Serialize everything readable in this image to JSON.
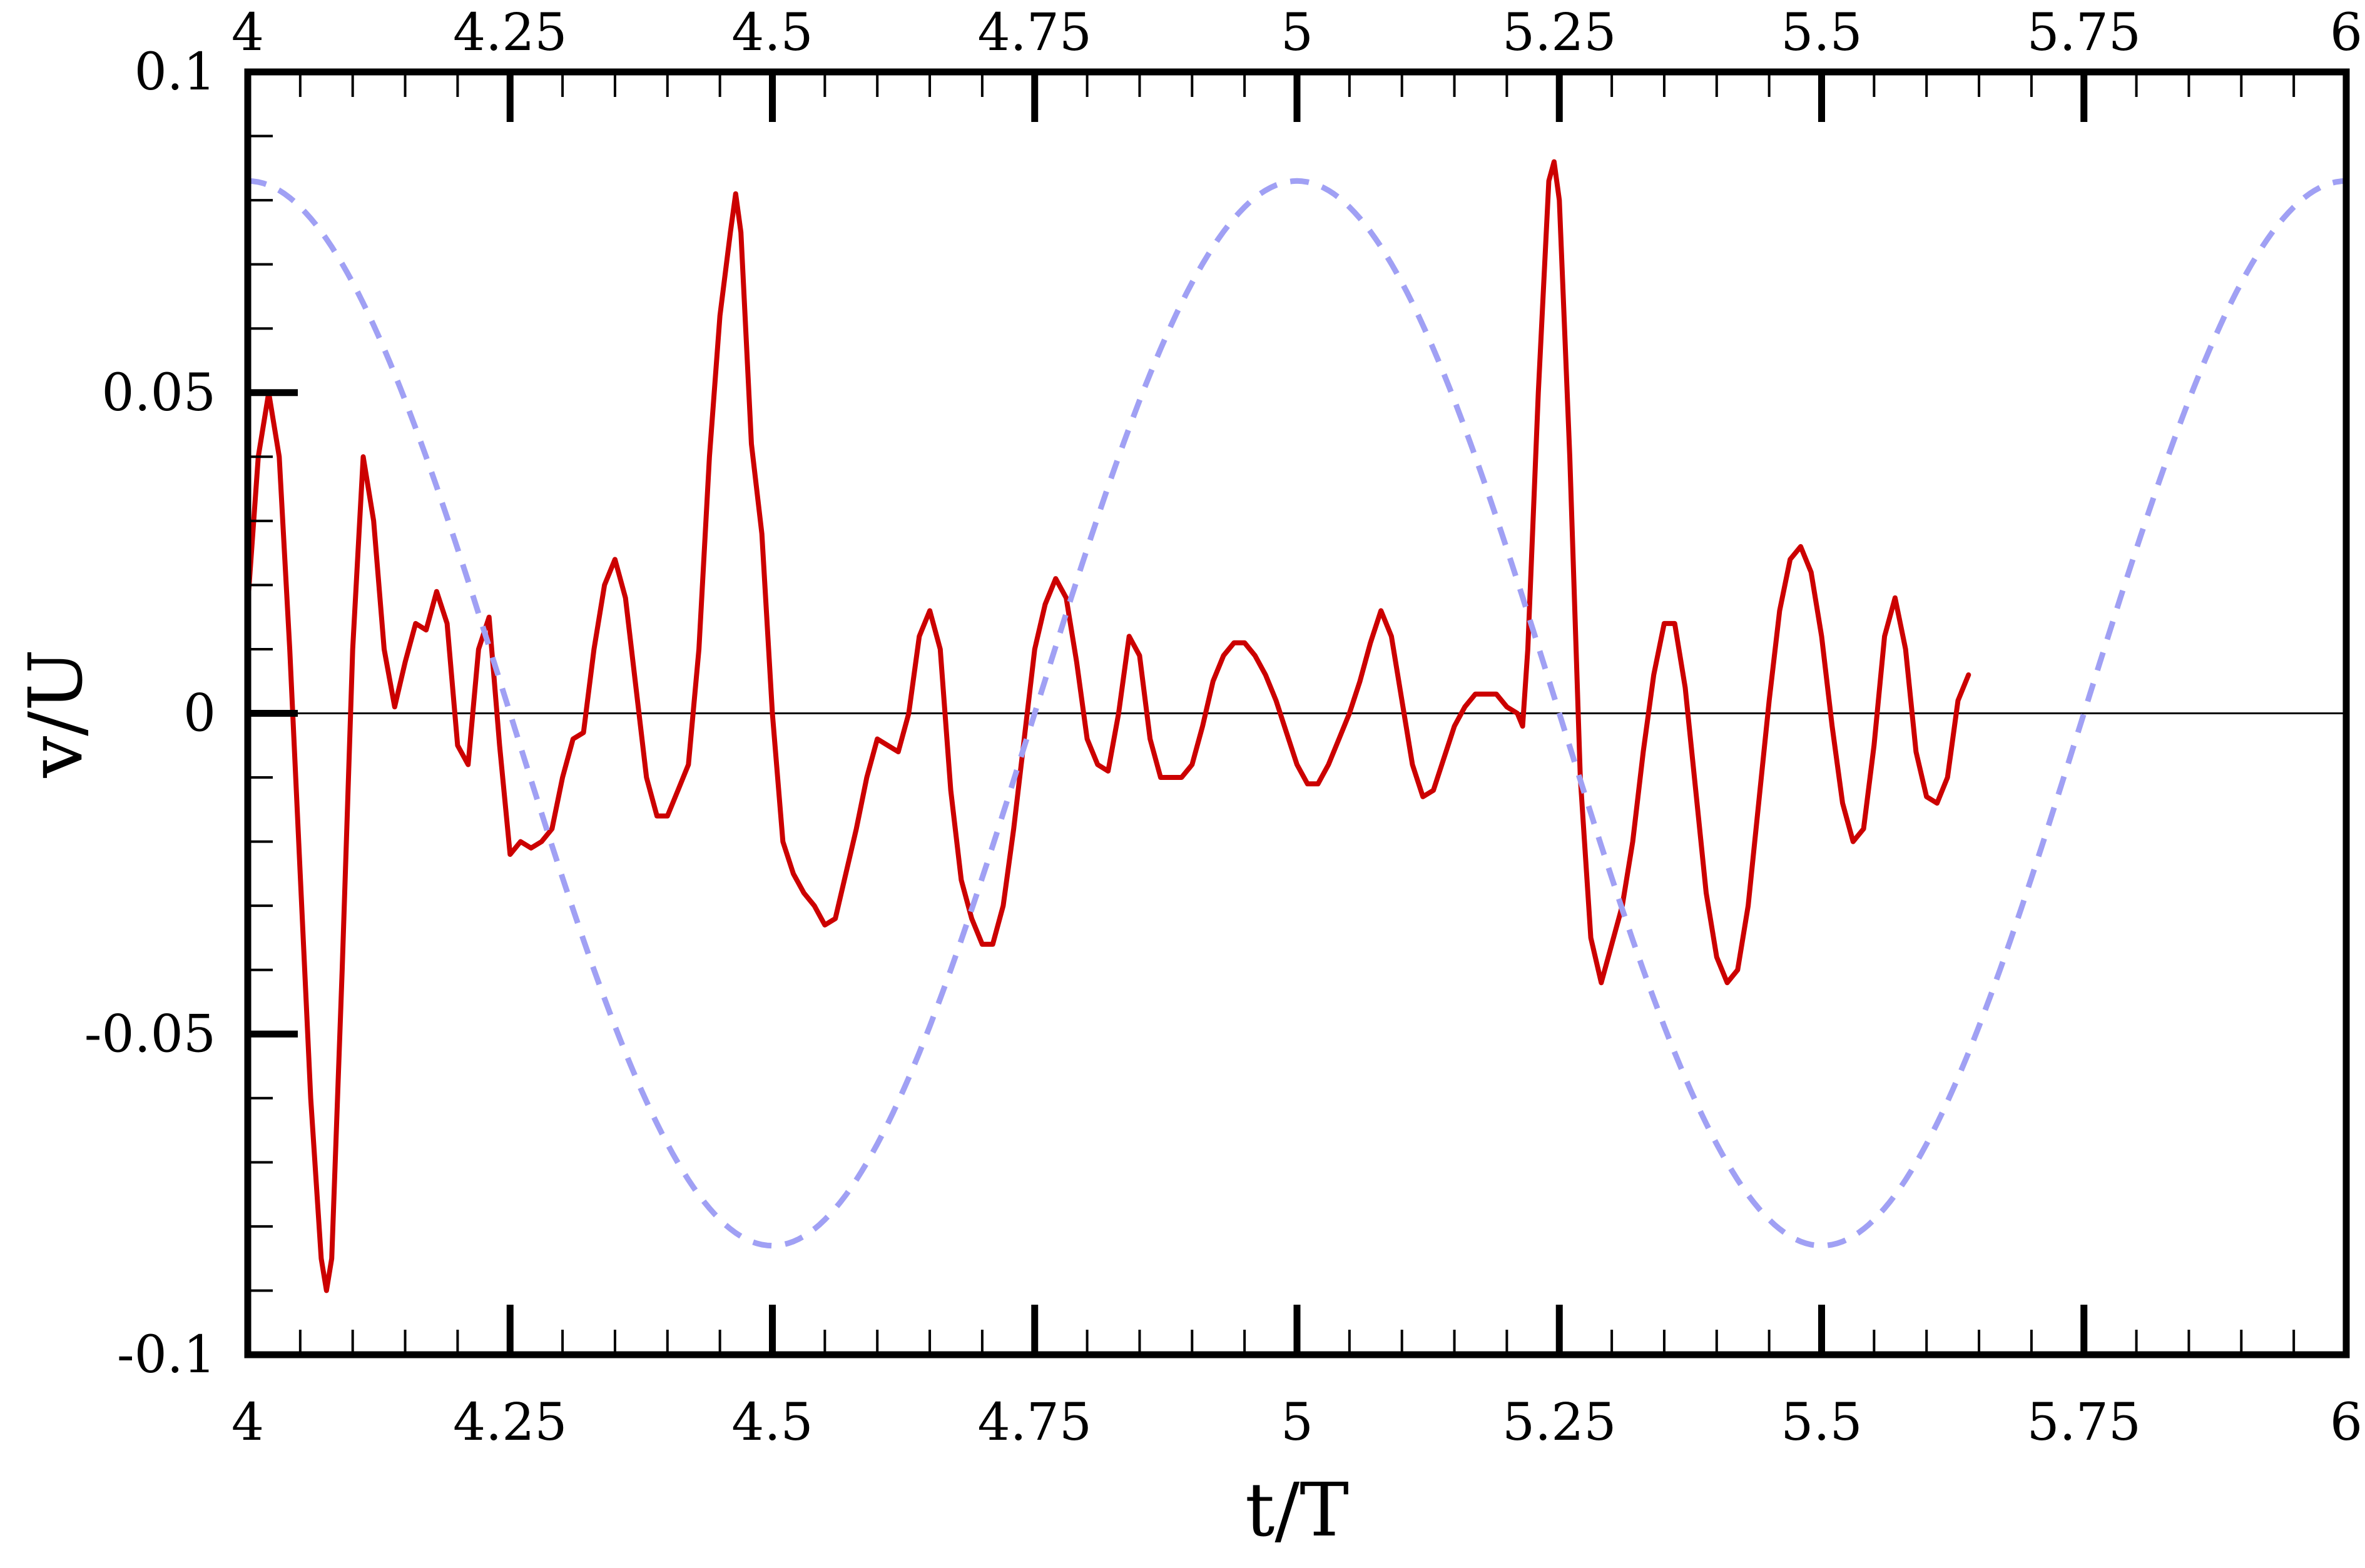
{
  "chart_data": {
    "type": "line",
    "title": "",
    "xlabel": "t/T",
    "ylabel": "v/U",
    "xlim": [
      4,
      6
    ],
    "ylim": [
      -0.1,
      0.1
    ],
    "grid": false,
    "legend": "none",
    "x_ticks": [
      4,
      4.25,
      4.5,
      4.75,
      5,
      5.25,
      5.5,
      5.75,
      6
    ],
    "x_tick_labels": [
      "4",
      "4.25",
      "4.5",
      "4.75",
      "5",
      "5.25",
      "5.5",
      "5.75",
      "6"
    ],
    "x_minor_step": 0.05,
    "y_ticks": [
      -0.1,
      -0.05,
      0,
      0.05,
      0.1
    ],
    "y_tick_labels": [
      "-0.1",
      "-0.05",
      "0",
      "0.05",
      "0.1"
    ],
    "y_minor_step": 0.01,
    "zero_line": true,
    "series": [
      {
        "style": "solid",
        "color": "#cc0000",
        "points": [
          [
            4.0,
            0.017
          ],
          [
            4.01,
            0.04
          ],
          [
            4.02,
            0.05
          ],
          [
            4.03,
            0.04
          ],
          [
            4.04,
            0.01
          ],
          [
            4.05,
            -0.025
          ],
          [
            4.06,
            -0.06
          ],
          [
            4.07,
            -0.085
          ],
          [
            4.075,
            -0.09
          ],
          [
            4.08,
            -0.085
          ],
          [
            4.09,
            -0.04
          ],
          [
            4.1,
            0.01
          ],
          [
            4.11,
            0.04
          ],
          [
            4.12,
            0.03
          ],
          [
            4.13,
            0.01
          ],
          [
            4.14,
            0.001
          ],
          [
            4.15,
            0.008
          ],
          [
            4.16,
            0.014
          ],
          [
            4.17,
            0.013
          ],
          [
            4.18,
            0.019
          ],
          [
            4.19,
            0.014
          ],
          [
            4.2,
            -0.005
          ],
          [
            4.21,
            -0.008
          ],
          [
            4.22,
            0.01
          ],
          [
            4.23,
            0.015
          ],
          [
            4.24,
            -0.005
          ],
          [
            4.25,
            -0.022
          ],
          [
            4.26,
            -0.02
          ],
          [
            4.27,
            -0.021
          ],
          [
            4.28,
            -0.02
          ],
          [
            4.29,
            -0.018
          ],
          [
            4.3,
            -0.01
          ],
          [
            4.31,
            -0.004
          ],
          [
            4.32,
            -0.003
          ],
          [
            4.33,
            0.01
          ],
          [
            4.34,
            0.02
          ],
          [
            4.35,
            0.024
          ],
          [
            4.36,
            0.018
          ],
          [
            4.37,
            0.004
          ],
          [
            4.38,
            -0.01
          ],
          [
            4.39,
            -0.016
          ],
          [
            4.4,
            -0.016
          ],
          [
            4.41,
            -0.012
          ],
          [
            4.42,
            -0.008
          ],
          [
            4.43,
            0.01
          ],
          [
            4.44,
            0.04
          ],
          [
            4.45,
            0.062
          ],
          [
            4.46,
            0.075
          ],
          [
            4.465,
            0.081
          ],
          [
            4.47,
            0.075
          ],
          [
            4.48,
            0.042
          ],
          [
            4.49,
            0.028
          ],
          [
            4.5,
            0.0
          ],
          [
            4.51,
            -0.02
          ],
          [
            4.52,
            -0.025
          ],
          [
            4.53,
            -0.028
          ],
          [
            4.54,
            -0.03
          ],
          [
            4.55,
            -0.033
          ],
          [
            4.56,
            -0.032
          ],
          [
            4.57,
            -0.025
          ],
          [
            4.58,
            -0.018
          ],
          [
            4.59,
            -0.01
          ],
          [
            4.6,
            -0.004
          ],
          [
            4.61,
            -0.005
          ],
          [
            4.62,
            -0.006
          ],
          [
            4.63,
            0.0
          ],
          [
            4.64,
            0.012
          ],
          [
            4.65,
            0.016
          ],
          [
            4.66,
            0.01
          ],
          [
            4.67,
            -0.012
          ],
          [
            4.68,
            -0.026
          ],
          [
            4.69,
            -0.032
          ],
          [
            4.7,
            -0.036
          ],
          [
            4.71,
            -0.036
          ],
          [
            4.72,
            -0.03
          ],
          [
            4.73,
            -0.018
          ],
          [
            4.74,
            -0.004
          ],
          [
            4.75,
            0.01
          ],
          [
            4.76,
            0.017
          ],
          [
            4.77,
            0.021
          ],
          [
            4.78,
            0.018
          ],
          [
            4.79,
            0.008
          ],
          [
            4.8,
            -0.004
          ],
          [
            4.81,
            -0.008
          ],
          [
            4.82,
            -0.009
          ],
          [
            4.83,
            0.0
          ],
          [
            4.84,
            0.012
          ],
          [
            4.85,
            0.009
          ],
          [
            4.86,
            -0.004
          ],
          [
            4.87,
            -0.01
          ],
          [
            4.88,
            -0.01
          ],
          [
            4.89,
            -0.01
          ],
          [
            4.9,
            -0.008
          ],
          [
            4.91,
            -0.002
          ],
          [
            4.92,
            0.005
          ],
          [
            4.93,
            0.009
          ],
          [
            4.94,
            0.011
          ],
          [
            4.95,
            0.011
          ],
          [
            4.96,
            0.009
          ],
          [
            4.97,
            0.006
          ],
          [
            4.98,
            0.002
          ],
          [
            4.99,
            -0.003
          ],
          [
            5.0,
            -0.008
          ],
          [
            5.01,
            -0.011
          ],
          [
            5.02,
            -0.011
          ],
          [
            5.03,
            -0.008
          ],
          [
            5.04,
            -0.004
          ],
          [
            5.05,
            0.0
          ],
          [
            5.06,
            0.005
          ],
          [
            5.07,
            0.011
          ],
          [
            5.08,
            0.016
          ],
          [
            5.09,
            0.012
          ],
          [
            5.1,
            0.002
          ],
          [
            5.11,
            -0.008
          ],
          [
            5.12,
            -0.013
          ],
          [
            5.13,
            -0.012
          ],
          [
            5.14,
            -0.007
          ],
          [
            5.15,
            -0.002
          ],
          [
            5.16,
            0.001
          ],
          [
            5.17,
            0.003
          ],
          [
            5.18,
            0.003
          ],
          [
            5.19,
            0.003
          ],
          [
            5.2,
            0.001
          ],
          [
            5.21,
            0.0
          ],
          [
            5.215,
            -0.002
          ],
          [
            5.22,
            0.01
          ],
          [
            5.23,
            0.05
          ],
          [
            5.24,
            0.083
          ],
          [
            5.245,
            0.086
          ],
          [
            5.25,
            0.08
          ],
          [
            5.26,
            0.04
          ],
          [
            5.27,
            -0.01
          ],
          [
            5.28,
            -0.035
          ],
          [
            5.29,
            -0.042
          ],
          [
            5.3,
            -0.036
          ],
          [
            5.31,
            -0.03
          ],
          [
            5.32,
            -0.02
          ],
          [
            5.33,
            -0.006
          ],
          [
            5.34,
            0.006
          ],
          [
            5.35,
            0.014
          ],
          [
            5.36,
            0.014
          ],
          [
            5.37,
            0.004
          ],
          [
            5.38,
            -0.012
          ],
          [
            5.39,
            -0.028
          ],
          [
            5.4,
            -0.038
          ],
          [
            5.41,
            -0.042
          ],
          [
            5.42,
            -0.04
          ],
          [
            5.43,
            -0.03
          ],
          [
            5.44,
            -0.014
          ],
          [
            5.45,
            0.002
          ],
          [
            5.46,
            0.016
          ],
          [
            5.47,
            0.024
          ],
          [
            5.48,
            0.026
          ],
          [
            5.49,
            0.022
          ],
          [
            5.5,
            0.012
          ],
          [
            5.51,
            -0.002
          ],
          [
            5.52,
            -0.014
          ],
          [
            5.53,
            -0.02
          ],
          [
            5.54,
            -0.018
          ],
          [
            5.55,
            -0.005
          ],
          [
            5.56,
            0.012
          ],
          [
            5.57,
            0.018
          ],
          [
            5.58,
            0.01
          ],
          [
            5.59,
            -0.006
          ],
          [
            5.6,
            -0.013
          ],
          [
            5.61,
            -0.014
          ],
          [
            5.62,
            -0.01
          ],
          [
            5.63,
            0.002
          ],
          [
            5.64,
            0.006
          ]
        ]
      },
      {
        "style": "dashed",
        "color": "#a0a0f4",
        "amplitude": 0.083,
        "period": 1,
        "phase_at_x0": 0
      }
    ]
  }
}
